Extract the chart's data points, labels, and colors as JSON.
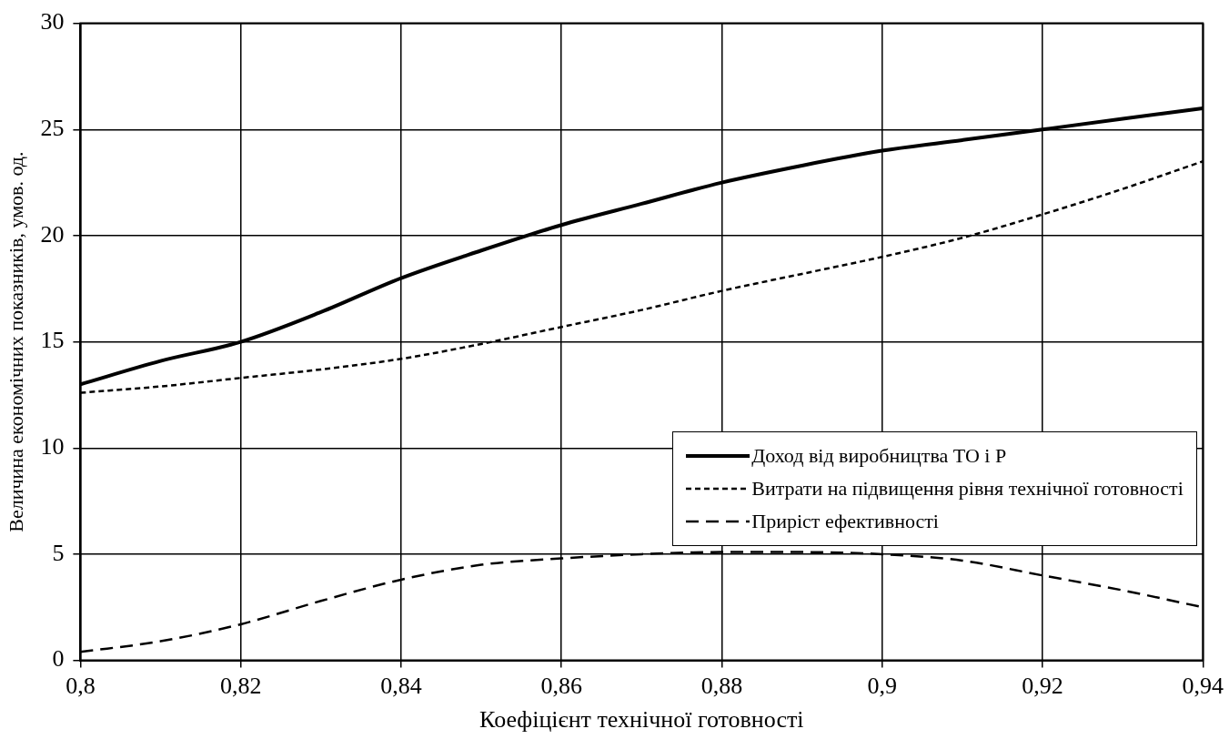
{
  "chart_data": {
    "type": "line",
    "xlabel": "Коефіцієнт технічної готовності",
    "ylabel": "Величина економічних показників, умов. од.",
    "x": [
      0.8,
      0.81,
      0.82,
      0.83,
      0.84,
      0.85,
      0.86,
      0.87,
      0.88,
      0.89,
      0.9,
      0.91,
      0.92,
      0.93,
      0.94
    ],
    "series": [
      {
        "name": "Доход від виробництва ТО і Р",
        "color": "#000000",
        "line_style": "solid",
        "values": [
          13,
          14.1,
          15,
          16.4,
          18,
          19.3,
          20.5,
          21.5,
          22.5,
          23.3,
          24,
          24.5,
          25,
          25.5,
          26
        ]
      },
      {
        "name": "Витрати на підвищення рівня технічної готовності",
        "color": "#000000",
        "line_style": "dotted",
        "values": [
          12.6,
          12.9,
          13.3,
          13.7,
          14.2,
          14.9,
          15.7,
          16.5,
          17.4,
          18.2,
          19,
          19.9,
          21,
          22.2,
          23.5
        ]
      },
      {
        "name": "Приріст ефективності",
        "color": "#000000",
        "line_style": "dashed",
        "values": [
          0.4,
          0.9,
          1.7,
          2.8,
          3.8,
          4.5,
          4.8,
          5,
          5.1,
          5.1,
          5,
          4.7,
          4,
          3.3,
          2.5
        ]
      }
    ],
    "xlim": [
      0.8,
      0.94
    ],
    "xticks": [
      {
        "value": 0.8,
        "label": "0,8"
      },
      {
        "value": 0.82,
        "label": "0,82"
      },
      {
        "value": 0.84,
        "label": "0,84"
      },
      {
        "value": 0.86,
        "label": "0,86"
      },
      {
        "value": 0.88,
        "label": "0,88"
      },
      {
        "value": 0.9,
        "label": "0,9"
      },
      {
        "value": 0.92,
        "label": "0,92"
      },
      {
        "value": 0.94,
        "label": "0,94"
      }
    ],
    "ylim": [
      0,
      30
    ],
    "yticks": [
      0,
      5,
      10,
      15,
      20,
      25,
      30
    ],
    "grid": true,
    "legend": "bottom right",
    "marker": "none"
  }
}
